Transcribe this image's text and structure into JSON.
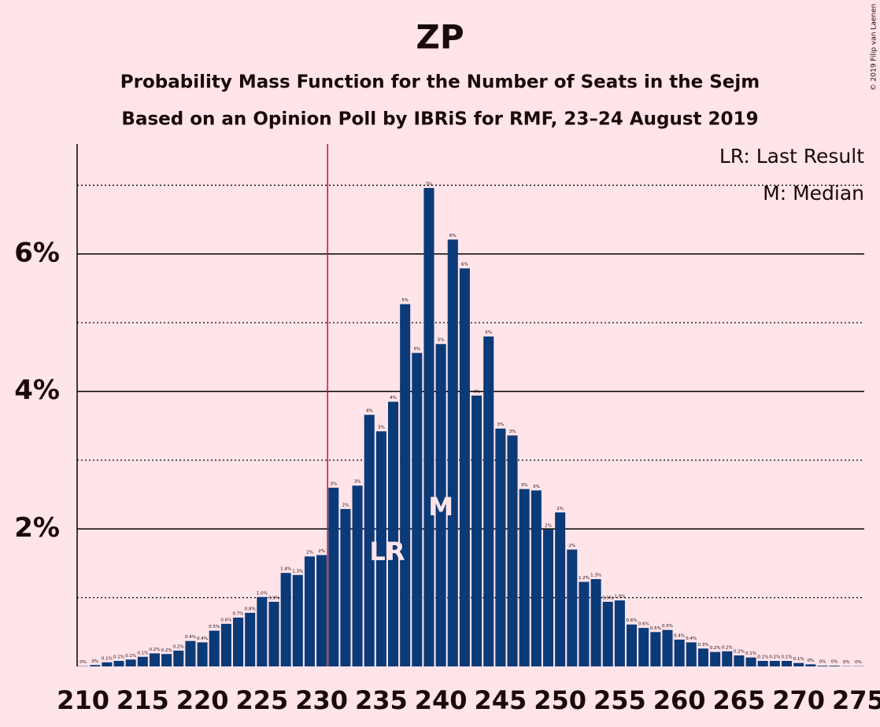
{
  "chart_data": {
    "type": "bar",
    "title": "ZP",
    "subtitle": "Probability Mass Function for the Number of Seats in the Sejm",
    "subtitle2": "Based on an Opinion Poll by IBRiS for RMF, 23–24 August 2019",
    "copyright": "© 2019 Filip van Laenen",
    "legend": [
      "LR: Last Result",
      "M: Median"
    ],
    "color": "#0a3a78",
    "last_result_line": 230.5,
    "last_result_color": "#c8102e",
    "annotations": [
      {
        "text": "LR",
        "x": 235.5,
        "y": 1.65
      },
      {
        "text": "M",
        "x": 240,
        "y": 2.3
      }
    ],
    "x": [
      210,
      211,
      212,
      213,
      214,
      215,
      216,
      217,
      218,
      219,
      220,
      221,
      222,
      223,
      224,
      225,
      226,
      227,
      228,
      229,
      230,
      231,
      232,
      233,
      234,
      235,
      236,
      237,
      238,
      239,
      240,
      241,
      242,
      243,
      244,
      245,
      246,
      247,
      248,
      249,
      250,
      251,
      252,
      253,
      254,
      255,
      256,
      257,
      258,
      259,
      260,
      261,
      262,
      263,
      264,
      265,
      266,
      267,
      268,
      269,
      270,
      271,
      272,
      273,
      274,
      275
    ],
    "values": [
      0.004,
      0.02,
      0.06,
      0.08,
      0.1,
      0.14,
      0.19,
      0.18,
      0.23,
      0.37,
      0.35,
      0.52,
      0.62,
      0.71,
      0.78,
      1.01,
      0.94,
      1.36,
      1.33,
      1.6,
      1.62,
      2.6,
      2.29,
      2.63,
      3.66,
      3.42,
      3.85,
      5.27,
      4.56,
      6.96,
      4.69,
      6.21,
      5.79,
      3.94,
      4.8,
      3.46,
      3.36,
      2.58,
      2.56,
      1.99,
      2.24,
      1.7,
      1.23,
      1.27,
      0.94,
      0.96,
      0.61,
      0.56,
      0.5,
      0.53,
      0.39,
      0.35,
      0.26,
      0.21,
      0.22,
      0.16,
      0.13,
      0.08,
      0.08,
      0.08,
      0.05,
      0.03,
      0.01,
      0.01,
      0.004,
      0.004
    ],
    "value_labels": [
      "0%",
      "0%",
      "0.1%",
      "0.1%",
      "0.1%",
      "0.1%",
      "0.2%",
      "0.2%",
      "0.2%",
      "0.4%",
      "0.4%",
      "0.5%",
      "0.6%",
      "0.7%",
      "0.8%",
      "1.0%",
      "0.9%",
      "1.4%",
      "1.3%",
      "2%",
      "2%",
      "3%",
      "2%",
      "3%",
      "4%",
      "3%",
      "4%",
      "5%",
      "5%",
      "7%",
      "5%",
      "6%",
      "6%",
      "4%",
      "5%",
      "3%",
      "3%",
      "3%",
      "3%",
      "2%",
      "2%",
      "2%",
      "1.2%",
      "1.3%",
      "0.9%",
      "1.0%",
      "0.6%",
      "0.6%",
      "0.5%",
      "0.5%",
      "0.4%",
      "0.4%",
      "0.3%",
      "0.2%",
      "0.2%",
      "0.2%",
      "0.1%",
      "0.1%",
      "0.1%",
      "0.1%",
      "0.1%",
      "0%",
      "0%",
      "0%",
      "0%",
      "0%"
    ],
    "xlim": [
      209.5,
      275.5
    ],
    "xticks": [
      210,
      215,
      220,
      225,
      230,
      235,
      240,
      245,
      250,
      255,
      260,
      265,
      270,
      275
    ],
    "ylim": [
      0,
      7.6
    ],
    "yticks": [
      {
        "value": 2,
        "label": "2%"
      },
      {
        "value": 4,
        "label": "4%"
      },
      {
        "value": 6,
        "label": "6%"
      }
    ],
    "minor_yticks": [
      1,
      3,
      5,
      7
    ],
    "grid": true
  }
}
